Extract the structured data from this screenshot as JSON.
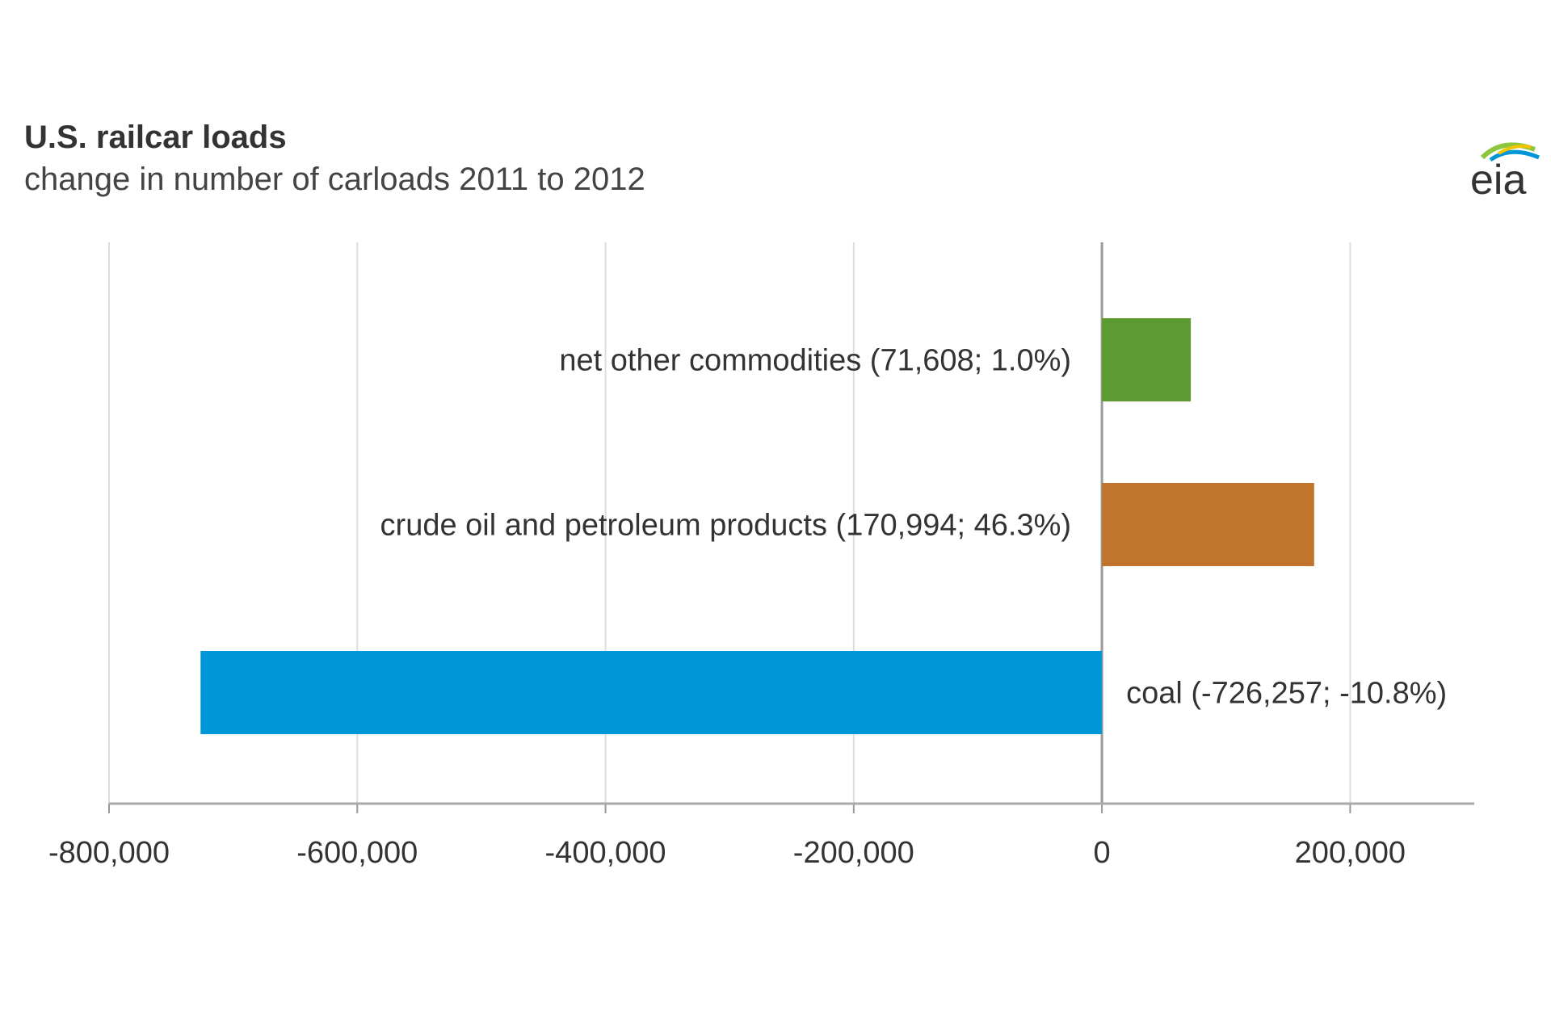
{
  "chart_data": {
    "type": "bar",
    "orientation": "horizontal",
    "title": "U.S. railcar loads",
    "subtitle": "change in number of carloads 2011 to 2012",
    "categories": [
      "net other commodities",
      "crude oil and petroleum products",
      "coal"
    ],
    "values": [
      71608,
      170994,
      -726257
    ],
    "data_labels": [
      "net other commodities (71,608; 1.0%)",
      "crude oil and petroleum products (170,994; 46.3%)",
      "coal (-726,257; -10.8%)"
    ],
    "percent_change": [
      1.0,
      46.3,
      -10.8
    ],
    "colors": [
      "#5e9a32",
      "#c1742b",
      "#0096d8"
    ],
    "xlim": [
      -800000,
      300000
    ],
    "xticks": [
      -800000,
      -600000,
      -400000,
      -200000,
      0,
      200000
    ],
    "xtick_labels": [
      "-800,000",
      "-600,000",
      "-400,000",
      "-200,000",
      "0",
      "200,000"
    ],
    "xlabel": "",
    "ylabel": "",
    "grid": "vertical",
    "legend": "none"
  },
  "logo": {
    "text": "eia"
  }
}
